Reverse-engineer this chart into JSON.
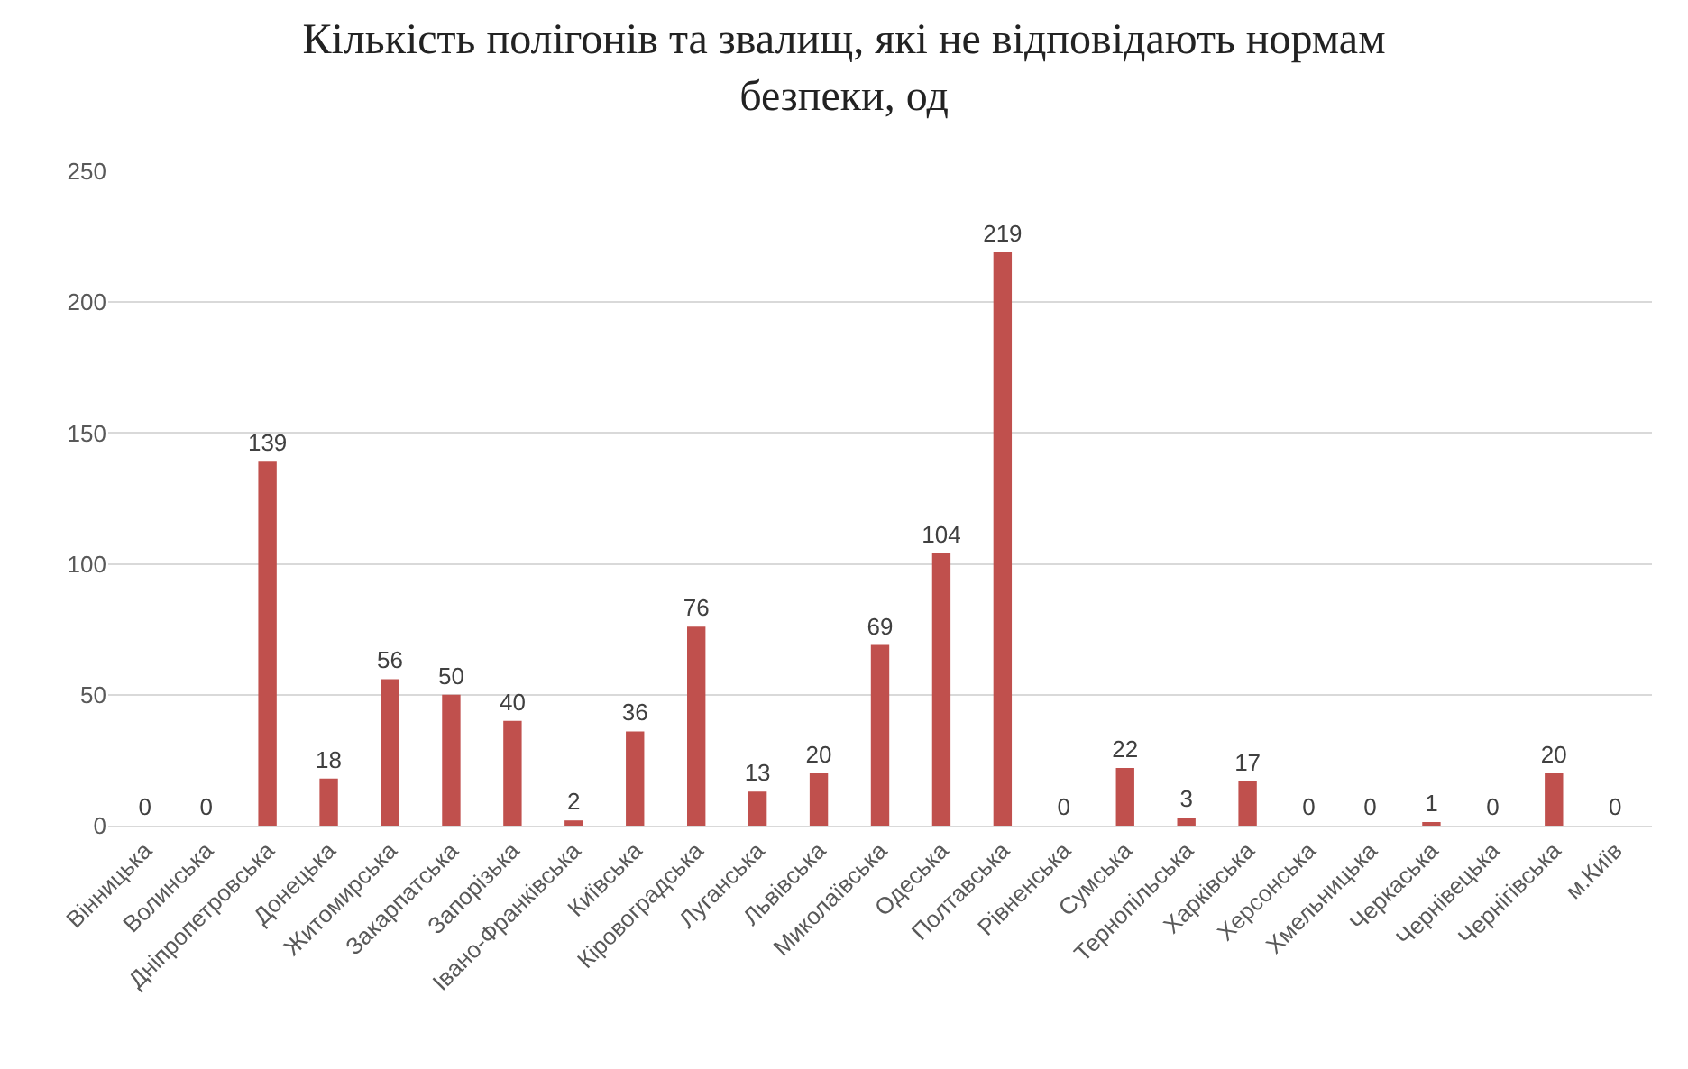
{
  "chart_data": {
    "type": "bar",
    "title": "Кількість полігонів та звалищ, які не відповідають нормам безпеки, од",
    "categories": [
      "Вінницька",
      "Волинська",
      "Дніпропетровська",
      "Донецька",
      "Житомирська",
      "Закарпатська",
      "Запорізька",
      "Івано-Франківська",
      "Київська",
      "Кіровоградська",
      "Луганська",
      "Львівська",
      "Миколаївська",
      "Одеська",
      "Полтавська",
      "Рівненська",
      "Сумська",
      "Тернопільська",
      "Харківська",
      "Херсонська",
      "Хмельницька",
      "Черкаська",
      "Чернівецька",
      "Чернігівська",
      "м.Київ"
    ],
    "values": [
      0,
      0,
      139,
      18,
      56,
      50,
      40,
      2,
      36,
      76,
      13,
      20,
      69,
      104,
      219,
      0,
      22,
      3,
      17,
      0,
      0,
      1,
      0,
      20,
      0
    ],
    "color": "#c0504d",
    "ylim": [
      0,
      250
    ],
    "yticks": [
      0,
      50,
      100,
      150,
      200,
      250
    ],
    "grid": "y",
    "data_labels": true
  }
}
